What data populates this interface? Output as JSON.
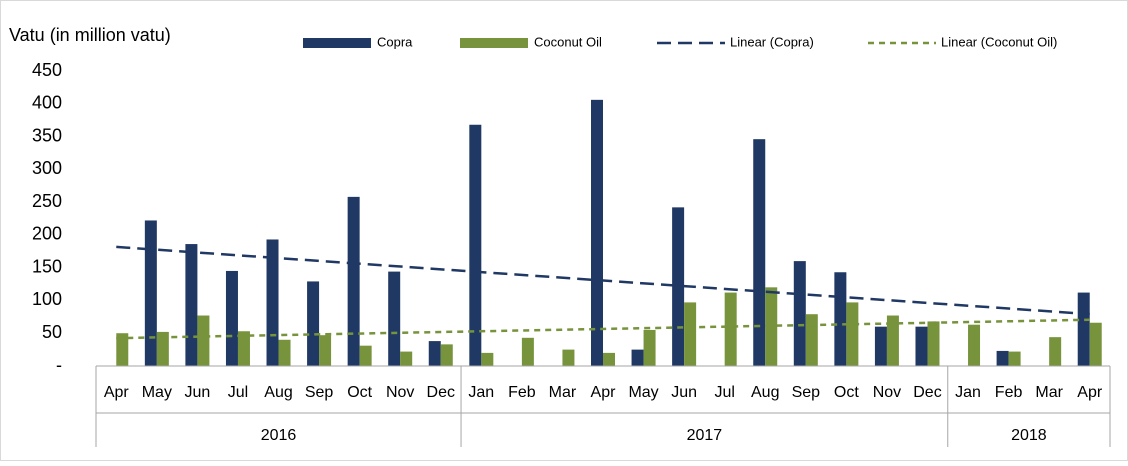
{
  "chart_data": {
    "type": "bar",
    "y_label": "Vatu (in million vatu)",
    "groups": [
      {
        "label": "2016",
        "categories": [
          "Apr",
          "May",
          "Jun",
          "Jul",
          "Aug",
          "Sep",
          "Oct",
          "Nov",
          "Dec"
        ]
      },
      {
        "label": "2017",
        "categories": [
          "Jan",
          "Feb",
          "Mar",
          "Apr",
          "May",
          "Jun",
          "Jul",
          "Aug",
          "Sep",
          "Oct",
          "Nov",
          "Dec"
        ]
      },
      {
        "label": "2018",
        "categories": [
          "Jan",
          "Feb",
          "Mar",
          "Apr"
        ]
      }
    ],
    "series": [
      {
        "name": "Copra",
        "color": "#203864",
        "values": [
          0,
          222,
          186,
          145,
          193,
          129,
          258,
          144,
          38,
          368,
          0,
          0,
          406,
          25,
          242,
          0,
          346,
          160,
          143,
          60,
          60,
          0,
          23,
          0,
          112
        ]
      },
      {
        "name": "Coconut Oil",
        "color": "#77933c",
        "values": [
          50,
          52,
          77,
          53,
          40,
          47,
          31,
          22,
          33,
          20,
          43,
          25,
          20,
          55,
          97,
          112,
          120,
          79,
          97,
          77,
          68,
          63,
          22,
          44,
          66
        ]
      }
    ],
    "trendlines": [
      {
        "name": "Linear (Copra)",
        "color": "#203864",
        "type": "linear"
      },
      {
        "name": "Linear (Coconut Oil)",
        "color": "#77933c",
        "type": "linear"
      }
    ],
    "ylim": [
      0,
      450
    ],
    "yticks": [
      {
        "value": 0,
        "label": "-"
      },
      50,
      100,
      150,
      200,
      250,
      300,
      350,
      400,
      450
    ],
    "grid": false,
    "legend": "top"
  }
}
